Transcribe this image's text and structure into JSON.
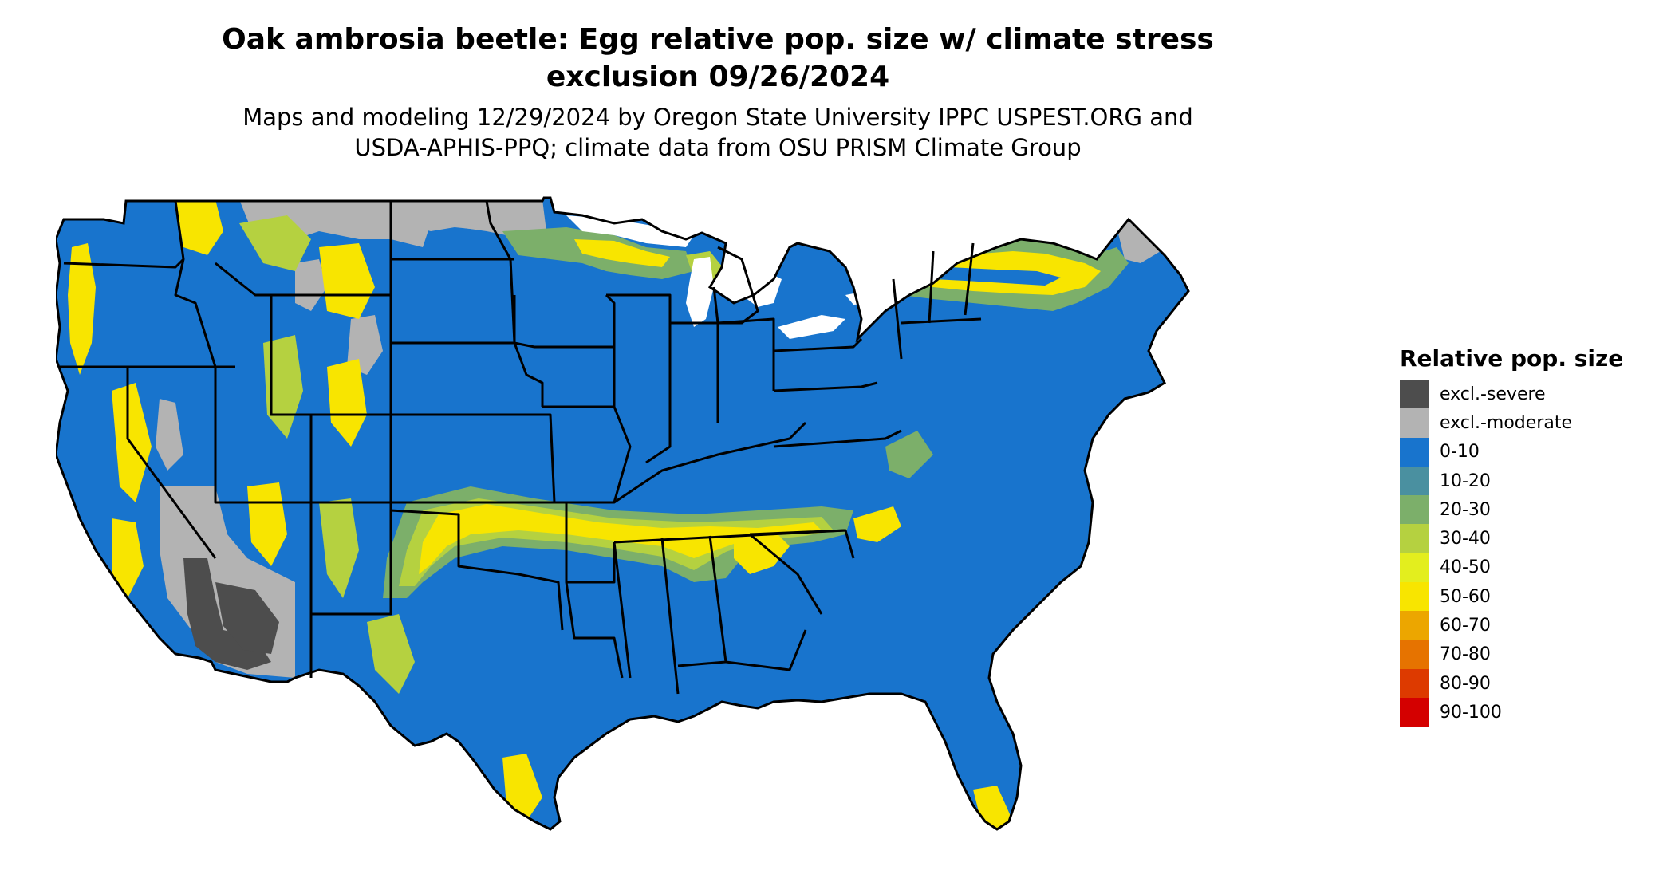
{
  "header": {
    "title_line1": "Oak ambrosia beetle: Egg relative pop. size w/ climate stress",
    "title_line2": "exclusion 09/26/2024",
    "subtitle_line1": "Maps and modeling 12/29/2024 by Oregon State University IPPC USPEST.ORG and",
    "subtitle_line2": "USDA-APHIS-PPQ; climate data from OSU PRISM Climate Group"
  },
  "legend": {
    "title": "Relative pop. size",
    "items": [
      {
        "label": "excl.-severe",
        "color": "#4d4d4d"
      },
      {
        "label": "excl.-moderate",
        "color": "#b3b3b3"
      },
      {
        "label": "0-10",
        "color": "#1874cd"
      },
      {
        "label": "10-20",
        "color": "#4a90a0"
      },
      {
        "label": "20-30",
        "color": "#7caf6a"
      },
      {
        "label": "30-40",
        "color": "#b5d140"
      },
      {
        "label": "40-50",
        "color": "#e3ee1e"
      },
      {
        "label": "50-60",
        "color": "#f8e500"
      },
      {
        "label": "60-70",
        "color": "#eca600"
      },
      {
        "label": "70-80",
        "color": "#e67300"
      },
      {
        "label": "80-90",
        "color": "#dd3a00"
      },
      {
        "label": "90-100",
        "color": "#d40000"
      }
    ]
  },
  "map": {
    "colors": {
      "base": "#1874cd",
      "moderate_exclusion": "#b3b3b3",
      "severe_exclusion": "#4d4d4d",
      "low_band": "#7caf6a",
      "mid_band": "#b5d140",
      "high_band": "#f8e500",
      "borders": "#000000",
      "water": "#ffffff"
    }
  }
}
